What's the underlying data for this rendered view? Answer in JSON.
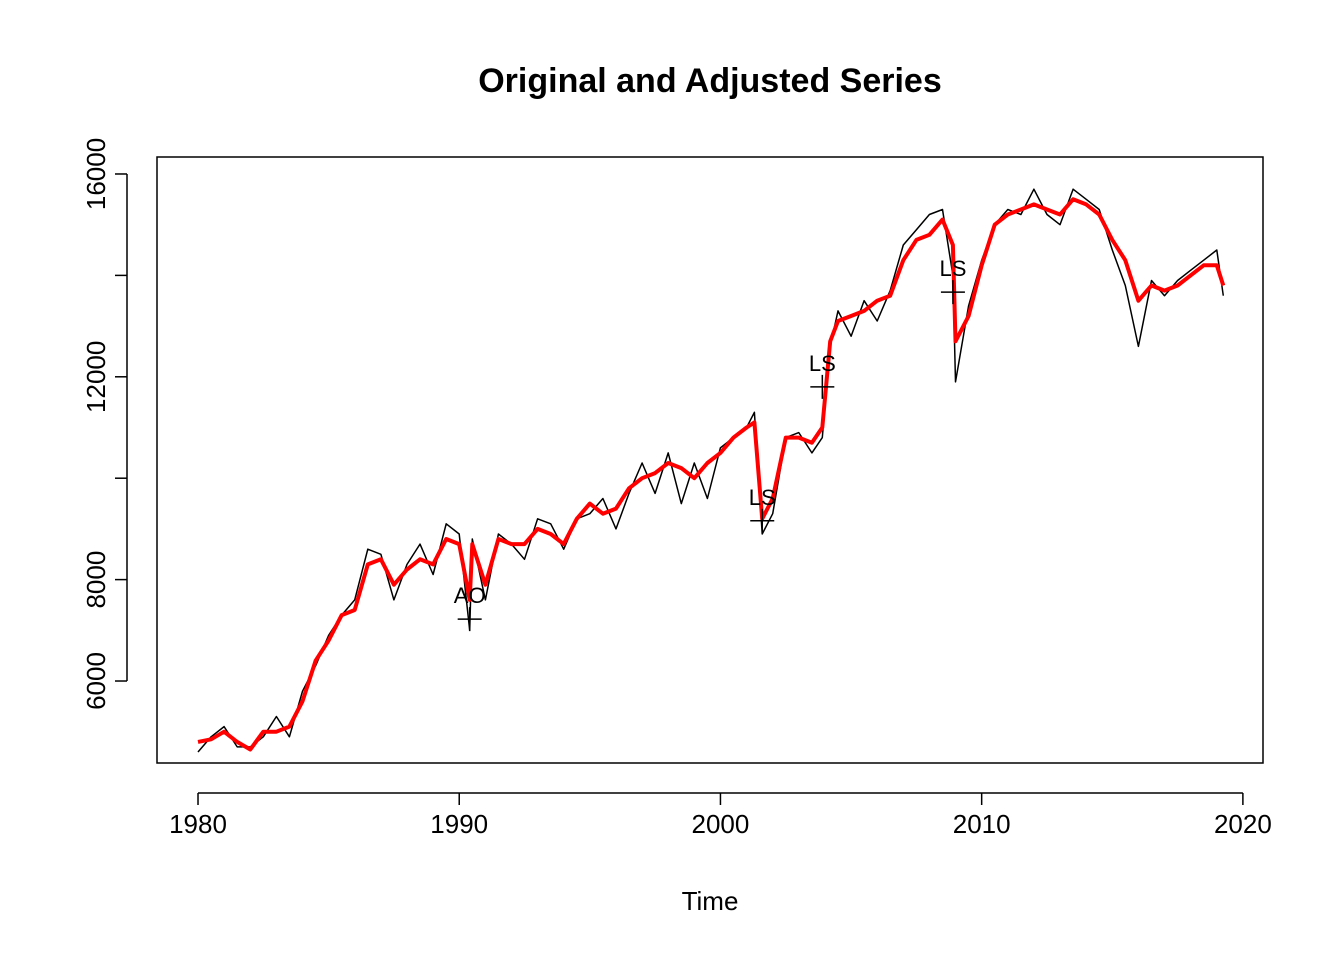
{
  "chart_data": {
    "type": "line",
    "title": "Original and Adjusted Series",
    "xlabel": "Time",
    "x": [
      1980.0,
      1980.5,
      1981.0,
      1981.5,
      1982.0,
      1982.5,
      1983.0,
      1983.5,
      1984.0,
      1984.5,
      1985.0,
      1985.5,
      1986.0,
      1986.5,
      1987.0,
      1987.5,
      1988.0,
      1988.5,
      1989.0,
      1989.5,
      1990.0,
      1990.4,
      1990.5,
      1991.0,
      1991.5,
      1992.0,
      1992.5,
      1993.0,
      1993.5,
      1994.0,
      1994.5,
      1995.0,
      1995.5,
      1996.0,
      1996.5,
      1997.0,
      1997.5,
      1998.0,
      1998.5,
      1999.0,
      1999.5,
      2000.0,
      2000.5,
      2001.0,
      2001.3,
      2001.6,
      2002.0,
      2002.5,
      2003.0,
      2003.5,
      2003.9,
      2004.2,
      2004.5,
      2005.0,
      2005.5,
      2006.0,
      2006.5,
      2007.0,
      2007.5,
      2008.0,
      2008.5,
      2008.9,
      2009.0,
      2009.5,
      2010.0,
      2010.5,
      2011.0,
      2011.5,
      2012.0,
      2012.5,
      2013.0,
      2013.5,
      2014.0,
      2014.5,
      2015.0,
      2015.5,
      2016.0,
      2016.5,
      2017.0,
      2017.5,
      2018.0,
      2018.5,
      2019.0,
      2019.25
    ],
    "series": [
      {
        "name": "Original",
        "color": "#000000",
        "width": 1.5,
        "values": [
          4600,
          4900,
          5100,
          4700,
          4700,
          4900,
          5300,
          4900,
          5800,
          6300,
          6900,
          7300,
          7600,
          8600,
          8500,
          7600,
          8300,
          8700,
          8100,
          9100,
          8900,
          7000,
          8800,
          7600,
          8900,
          8700,
          8400,
          9200,
          9100,
          8600,
          9200,
          9300,
          9600,
          9000,
          9700,
          10300,
          9700,
          10500,
          9500,
          10300,
          9600,
          10600,
          10800,
          11000,
          11300,
          8900,
          9300,
          10800,
          10900,
          10500,
          10800,
          12600,
          13300,
          12800,
          13500,
          13100,
          13700,
          14600,
          14900,
          15200,
          15300,
          14000,
          11900,
          13400,
          14300,
          15000,
          15300,
          15200,
          15700,
          15200,
          15000,
          15700,
          15500,
          15300,
          14500,
          13800,
          12600,
          13900,
          13600,
          13900,
          14100,
          14300,
          14500,
          13600
        ]
      },
      {
        "name": "Adjusted",
        "color": "#ff0000",
        "width": 4,
        "values": [
          4800,
          4850,
          5000,
          4800,
          4650,
          5000,
          5000,
          5100,
          5600,
          6400,
          6800,
          7300,
          7400,
          8300,
          8400,
          7900,
          8200,
          8400,
          8300,
          8800,
          8700,
          7600,
          8700,
          7900,
          8800,
          8700,
          8700,
          9000,
          8900,
          8700,
          9200,
          9500,
          9300,
          9400,
          9800,
          10000,
          10100,
          10300,
          10200,
          10000,
          10300,
          10500,
          10800,
          11000,
          11100,
          9200,
          9600,
          10800,
          10800,
          10700,
          11000,
          12700,
          13100,
          13200,
          13300,
          13500,
          13600,
          14300,
          14700,
          14800,
          15100,
          14600,
          12700,
          13200,
          14200,
          15000,
          15200,
          15300,
          15400,
          15300,
          15200,
          15500,
          15400,
          15200,
          14700,
          14300,
          13500,
          13800,
          13700,
          13800,
          14000,
          14200,
          14200,
          13800
        ]
      }
    ],
    "annotations": [
      {
        "x": 1990.4,
        "y": 7220,
        "label": "AO"
      },
      {
        "x": 2001.6,
        "y": 9160,
        "label": "LS"
      },
      {
        "x": 2003.9,
        "y": 11800,
        "label": "LS"
      },
      {
        "x": 2008.9,
        "y": 13670,
        "label": "LS"
      }
    ],
    "xlim": [
      1978.43,
      2020.77
    ],
    "ylim": [
      4383,
      16335
    ],
    "xticks": [
      1980,
      1990,
      2000,
      2010,
      2020
    ],
    "yticks": [
      6000,
      8000,
      {
        "value": 10000,
        "label": null
      },
      12000,
      {
        "value": 14000,
        "label": null
      },
      16000
    ],
    "grid": false
  }
}
